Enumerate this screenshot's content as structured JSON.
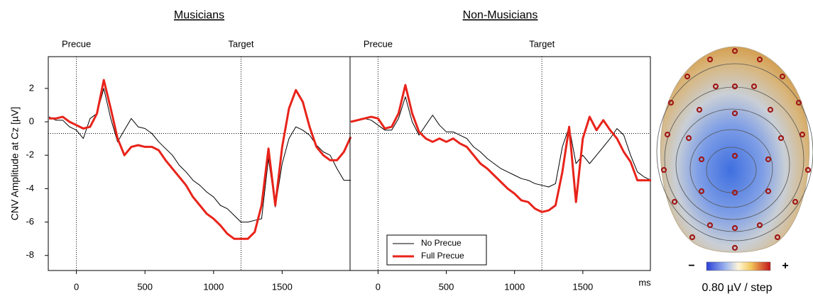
{
  "chart_data": [
    {
      "type": "line",
      "title": "Musicians",
      "ylabel": "CNV Amplitude at Cz [µV]",
      "x": [
        -200,
        -150,
        -100,
        -50,
        0,
        50,
        100,
        150,
        200,
        250,
        300,
        350,
        400,
        450,
        500,
        550,
        600,
        650,
        700,
        750,
        800,
        850,
        900,
        950,
        1000,
        1050,
        1100,
        1150,
        1200,
        1250,
        1300,
        1350,
        1400,
        1450,
        1500,
        1550,
        1600,
        1650,
        1700,
        1750,
        1800,
        1850,
        1900,
        1950,
        2000
      ],
      "xlim": [
        -205,
        1995
      ],
      "ylim": [
        -8.9,
        3.9
      ],
      "xticks": [
        0,
        500,
        1000,
        1500
      ],
      "yticks": [
        -8,
        -6,
        -4,
        -2,
        0,
        2
      ],
      "hline": -0.7,
      "markers": [
        {
          "label": "Precue",
          "x": 0
        },
        {
          "label": "Target",
          "x": 1200
        }
      ],
      "series": [
        {
          "name": "No Precue",
          "color": "#000000",
          "width": 1,
          "values": [
            0.3,
            0.1,
            0.1,
            -0.3,
            -0.5,
            -1.0,
            0.2,
            0.5,
            2.0,
            0.2,
            -1.2,
            -0.5,
            0.2,
            -0.3,
            -0.4,
            -0.7,
            -1.2,
            -1.6,
            -2.0,
            -2.6,
            -3.0,
            -3.5,
            -3.8,
            -4.2,
            -4.5,
            -5.0,
            -5.2,
            -5.6,
            -6.0,
            -6.0,
            -5.9,
            -5.8,
            -2.2,
            -5.1,
            -2.5,
            -1.0,
            -0.3,
            -0.5,
            -0.8,
            -1.4,
            -1.8,
            -2.0,
            -2.8,
            -3.5,
            -3.5
          ]
        },
        {
          "name": "Full Precue",
          "color": "#e8231a",
          "width": 3,
          "values": [
            0.2,
            0.2,
            0.3,
            0.0,
            -0.2,
            -0.4,
            -0.3,
            0.5,
            2.5,
            0.8,
            -1.0,
            -2.0,
            -1.5,
            -1.4,
            -1.5,
            -1.5,
            -1.7,
            -2.3,
            -2.8,
            -3.3,
            -3.8,
            -4.5,
            -5.0,
            -5.5,
            -5.8,
            -6.2,
            -6.7,
            -7.0,
            -7.0,
            -7.0,
            -6.6,
            -5.0,
            -1.6,
            -5.0,
            -1.5,
            0.8,
            1.9,
            1.2,
            -0.3,
            -1.5,
            -2.0,
            -2.3,
            -2.3,
            -1.8,
            -0.9
          ]
        }
      ]
    },
    {
      "type": "line",
      "title": "Non-Musicians",
      "x_unit": "ms",
      "legend": "lower left",
      "x": [
        -200,
        -150,
        -100,
        -50,
        0,
        50,
        100,
        150,
        200,
        250,
        300,
        350,
        400,
        450,
        500,
        550,
        600,
        650,
        700,
        750,
        800,
        850,
        900,
        950,
        1000,
        1050,
        1100,
        1150,
        1200,
        1250,
        1300,
        1350,
        1400,
        1450,
        1500,
        1550,
        1600,
        1650,
        1700,
        1750,
        1800,
        1850,
        1900,
        1950,
        2000
      ],
      "xlim": [
        -205,
        1995
      ],
      "ylim": [
        -8.9,
        3.9
      ],
      "xticks": [
        0,
        500,
        1000,
        1500
      ],
      "hline": -0.7,
      "markers": [
        {
          "label": "Precue",
          "x": 0
        },
        {
          "label": "Target",
          "x": 1200
        }
      ],
      "series": [
        {
          "name": "No Precue",
          "color": "#000000",
          "width": 1,
          "values": [
            0.0,
            0.1,
            0.2,
            0.1,
            -0.2,
            -0.5,
            -0.5,
            0.2,
            1.5,
            0.0,
            -0.8,
            -0.2,
            0.4,
            -0.2,
            -0.6,
            -0.6,
            -0.8,
            -1.0,
            -1.5,
            -1.8,
            -2.2,
            -2.5,
            -2.8,
            -3.0,
            -3.2,
            -3.4,
            -3.5,
            -3.7,
            -3.8,
            -3.9,
            -3.7,
            -1.5,
            -0.3,
            -2.5,
            -2.0,
            -2.5,
            -2.0,
            -1.5,
            -1.0,
            -0.4,
            -0.8,
            -2.0,
            -3.0,
            -3.3,
            -3.5
          ]
        },
        {
          "name": "Full Precue",
          "color": "#e8231a",
          "width": 3,
          "values": [
            0.0,
            0.1,
            0.2,
            0.3,
            0.2,
            -0.4,
            -0.3,
            0.5,
            2.2,
            0.5,
            -0.6,
            -1.0,
            -1.2,
            -1.0,
            -1.2,
            -1.0,
            -1.3,
            -1.5,
            -2.0,
            -2.5,
            -2.8,
            -3.2,
            -3.6,
            -4.0,
            -4.3,
            -4.7,
            -4.8,
            -5.2,
            -5.4,
            -5.3,
            -5.0,
            -3.0,
            -0.3,
            -4.8,
            -1.0,
            0.3,
            -0.5,
            0.1,
            -0.5,
            -1.0,
            -1.8,
            -2.4,
            -3.5,
            -3.5,
            -3.5
          ]
        }
      ]
    }
  ],
  "topomap": {
    "minus": "−",
    "plus": "+",
    "scale_label": "0.80 µV / step"
  }
}
